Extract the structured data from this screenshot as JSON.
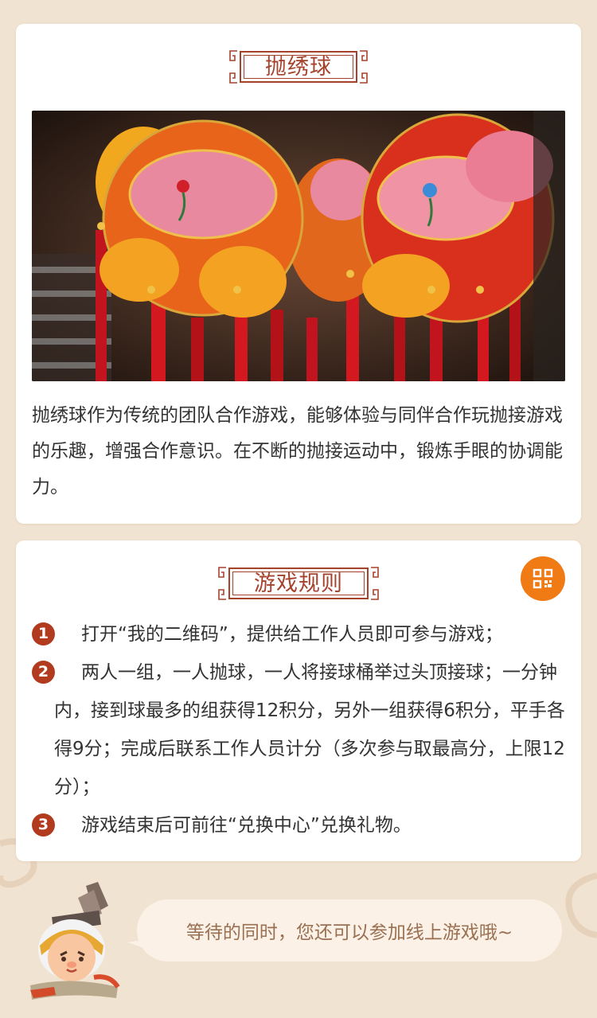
{
  "intro": {
    "title": "抛绣球",
    "image_alt": "绣球",
    "description": "抛绣球作为传统的团队合作游戏，能够体验与同伴合作玩抛接游戏的乐趣，增强合作意识。在不断的抛接运动中，锻炼手眼的协调能力。"
  },
  "rules": {
    "title": "游戏规则",
    "qr_icon": "qr-code-icon",
    "items": [
      {
        "num": "1",
        "text": "打开“我的二维码”，提供给工作人员即可参与游戏；"
      },
      {
        "num": "2",
        "text": "两人一组，一人抛球，一人将接球桶举过头顶接球；一分钟内，接到球最多的组获得12积分，另外一组获得6积分，平手各得9分；完成后联系工作人员计分（多次参与取最高分，上限12分）；"
      },
      {
        "num": "3",
        "text": "游戏结束后可前往“兑换中心”兑换礼物。"
      }
    ]
  },
  "footer": {
    "bubble_text": "等待的同时，您还可以参加线上游戏哦~"
  },
  "colors": {
    "background": "#f1e3d1",
    "accent": "#a5422c",
    "number_badge": "#b23a1f",
    "qr_button": "#f07a14",
    "bubble_text": "#9a7052"
  }
}
